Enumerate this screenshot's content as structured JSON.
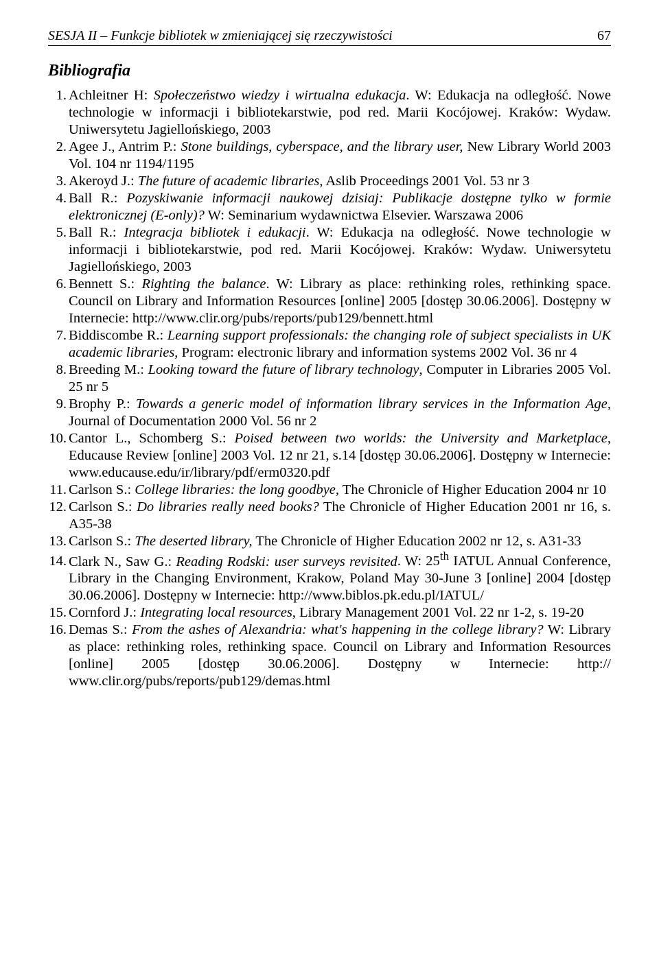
{
  "typography": {
    "font_family": "Times New Roman",
    "body_fontsize_pt": 15,
    "heading_fontsize_pt": 18,
    "header_fontsize_pt": 15,
    "line_height": 1.22,
    "text_color": "#000000",
    "background_color": "#ffffff",
    "header_rule_color": "#000000"
  },
  "header": {
    "running_title": "SESJA II – Funkcje bibliotek w zmieniającej się rzeczywistości",
    "page_number": "67"
  },
  "section_heading": "Bibliografia",
  "entries": [
    {
      "n": 1,
      "author": "Achleitner H",
      "title_italic": "Społeczeństwo wiedzy i wirtualna edukacja",
      "rest": ". W: Edukacja na odległość. Nowe technologie w informacji i bibliotekarstwie, pod red. Marii Kocójowej. Kraków: Wydaw. Uniwersytetu Jagiellońskiego, 2003"
    },
    {
      "n": 2,
      "author": "Agee J., Antrim P",
      "title_italic": "Stone buildings, cyberspace, and the library user,",
      "rest": " New Library World 2003 Vol. 104 nr 1194/1195"
    },
    {
      "n": 3,
      "author": "Akeroyd J",
      "title_italic": "The future of academic libraries",
      "rest": ", Aslib Proceedings 2001 Vol. 53 nr 3"
    },
    {
      "n": 4,
      "author": "Ball R",
      "title_italic": "Pozyskiwanie informacji naukowej dzisiaj: Publikacje dostępne tylko w formie elektronicznej (E-only)?",
      "rest": " W: Seminarium wydawnictwa Elsevier. Warszawa 2006"
    },
    {
      "n": 5,
      "author": "Ball R",
      "title_italic": "Integracja bibliotek i edukacji",
      "rest": ". W: Edukacja na odległość. Nowe technologie w informacji i bibliotekarstwie, pod red. Marii Kocójowej. Kraków: Wydaw. Uniwersytetu Jagiellońskiego, 2003"
    },
    {
      "n": 6,
      "author": "Bennett S",
      "title_italic": "Righting the balance",
      "rest": ". W: Library as place: rethinking roles, rethinking space. Council on Library and Information Resources [online] 2005 [dostęp 30.06.2006]. Dostępny w Internecie: http://www.clir.org/pubs/reports/pub129/bennett.html"
    },
    {
      "n": 7,
      "author": "Biddiscombe R",
      "title_italic": "Learning support professionals: the changing role of subject specialists in UK academic libraries",
      "rest": ", Program: electronic library and information systems 2002 Vol. 36 nr 4"
    },
    {
      "n": 8,
      "author": "Breeding M",
      "title_italic": "Looking toward the future of library technology",
      "rest": ", Computer in Libraries 2005 Vol. 25 nr 5"
    },
    {
      "n": 9,
      "author": "Brophy P",
      "title_italic": "Towards a generic model of information library services in the Information Age,",
      "rest": " Journal of Documentation 2000 Vol. 56 nr 2"
    },
    {
      "n": 10,
      "author": "Cantor L., Schomberg S",
      "title_italic": "Poised between two worlds: the University and Marketplace",
      "rest": ", Educause Review [online] 2003 Vol. 12 nr 21, s.14 [dostęp 30.06.2006]. Dostępny w Internecie: www.educause.edu/ir/library/pdf/erm0320.pdf"
    },
    {
      "n": 11,
      "author": "Carlson S",
      "title_italic": "College libraries: the long goodbye,",
      "rest": " The Chronicle of Higher Education 2004 nr 10"
    },
    {
      "n": 12,
      "author": "Carlson S",
      "title_italic": "Do libraries really need books?",
      "rest": " The Chronicle of Higher Education 2001 nr 16, s. A35-38"
    },
    {
      "n": 13,
      "author": "Carlson S",
      "title_italic": "The deserted library,",
      "rest": " The Chronicle of Higher Education 2002 nr 12, s. A31-33"
    },
    {
      "n": 14,
      "author": "Clark N., Saw G",
      "title_italic": "Reading Rodski: user surveys revisited",
      "rest_html": ". W: 25<sup>th</sup> IATUL Annual Conference, Library in the Changing Environment, Krakow, Poland May 30-June 3 [online] 2004 [dostęp 30.06.2006]. Dostępny w Internecie: http://www.biblos.pk.edu.pl/IATUL/"
    },
    {
      "n": 15,
      "author": "Cornford J",
      "title_italic": "Integrating local resources",
      "rest": ", Library Management 2001 Vol. 22 nr 1-2, s. 19-20"
    },
    {
      "n": 16,
      "author": "Demas S",
      "title_italic": "From the ashes of Alexandria: what's happening in the college library?",
      "rest_br": " W: Library as place: rethinking roles, rethinking space. Council on Library and Information Resources [online] 2005 [dostęp 30.06.2006]. Dostępny w Internecie: http:// www.clir.org/pubs/reports/pub129/demas.html"
    }
  ]
}
